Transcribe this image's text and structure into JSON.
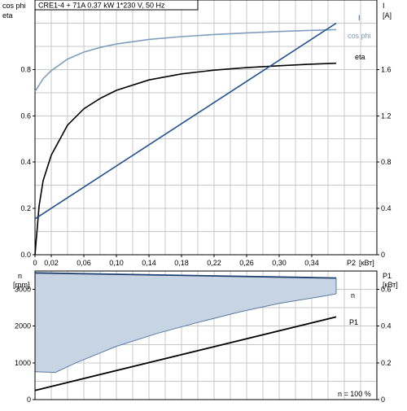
{
  "header": "CRE1-4 + 71A   0.37 kW   1*230 V, 50 Hz",
  "footnote": "n = 100 %",
  "chart_data": [
    {
      "type": "line",
      "panel": "top",
      "title": "CRE1-4 + 71A   0.37 kW   1*230 V, 50 Hz",
      "xlabel": "P2 [кВт]",
      "xlim": [
        0,
        0.42
      ],
      "x_ticks": [
        "0",
        "0,02",
        "0,06",
        "0,10",
        "0,14",
        "0,18",
        "0,22",
        "0,26",
        "0,30",
        "0,34"
      ],
      "x_tick_values": [
        0,
        0.02,
        0.06,
        0.1,
        0.14,
        0.18,
        0.22,
        0.26,
        0.3,
        0.34
      ],
      "x_label_pieces": [
        "P2",
        "[кВт]"
      ],
      "y_left": {
        "label_lines": [
          "cos phi",
          "eta"
        ],
        "lim": [
          0,
          1.1
        ],
        "ticks": [
          "0.0",
          "0.2",
          "0.4",
          "0.6",
          "0.8"
        ],
        "tick_values": [
          0,
          0.2,
          0.4,
          0.6,
          0.8
        ]
      },
      "y_right": {
        "label_lines": [
          "I",
          "[A]"
        ],
        "lim": [
          0,
          2.2
        ],
        "ticks": [
          "0",
          "0.4",
          "0.8",
          "1.2",
          "1.6"
        ],
        "tick_values": [
          0,
          0.4,
          0.8,
          1.2,
          1.6
        ]
      },
      "grid": true,
      "series": [
        {
          "name": "cos phi",
          "axis": "left",
          "color": "#7f9fbf",
          "x": [
            0,
            0.01,
            0.02,
            0.04,
            0.06,
            0.08,
            0.1,
            0.14,
            0.18,
            0.22,
            0.26,
            0.3,
            0.34,
            0.37
          ],
          "y": [
            0.705,
            0.76,
            0.795,
            0.845,
            0.875,
            0.895,
            0.91,
            0.93,
            0.942,
            0.951,
            0.958,
            0.964,
            0.969,
            0.972
          ]
        },
        {
          "name": "eta",
          "axis": "left",
          "color": "#000000",
          "x": [
            0,
            0.005,
            0.01,
            0.02,
            0.04,
            0.06,
            0.08,
            0.1,
            0.14,
            0.18,
            0.22,
            0.26,
            0.3,
            0.34,
            0.37
          ],
          "y": [
            0.0,
            0.21,
            0.32,
            0.43,
            0.56,
            0.63,
            0.675,
            0.71,
            0.755,
            0.781,
            0.797,
            0.808,
            0.816,
            0.823,
            0.827
          ]
        },
        {
          "name": "I",
          "axis": "right",
          "color": "#1f4f8f",
          "x": [
            0,
            0.37
          ],
          "y": [
            0.31,
            2.0
          ]
        }
      ]
    },
    {
      "type": "line",
      "panel": "bottom",
      "xlim": [
        0,
        0.42
      ],
      "y_left": {
        "label_lines": [
          "n",
          "[rpm]"
        ],
        "lim": [
          0,
          3500
        ],
        "ticks": [
          "0",
          "1000",
          "2000",
          "3000"
        ],
        "tick_values": [
          0,
          1000,
          2000,
          3000
        ]
      },
      "y_right": {
        "label_lines": [
          "P1",
          "[кВт]"
        ],
        "lim": [
          0,
          0.7
        ],
        "ticks": [
          "0",
          "0.2",
          "0.4",
          "0.6"
        ],
        "tick_values": [
          0,
          0.2,
          0.4,
          0.6
        ]
      },
      "grid": true,
      "range_band": {
        "color": "#c6d4e3",
        "upper": {
          "x": [
            0,
            0.37
          ],
          "y": [
            3450,
            3310
          ]
        },
        "lower": {
          "x": [
            0,
            0.025,
            0.05,
            0.1,
            0.15,
            0.2,
            0.25,
            0.3,
            0.35,
            0.37
          ],
          "y": [
            760,
            740,
            1000,
            1450,
            1800,
            2100,
            2380,
            2620,
            2800,
            2880
          ]
        }
      },
      "series": [
        {
          "name": "n",
          "axis": "left",
          "color": "#1f3f6f",
          "x": [
            0,
            0.37
          ],
          "y": [
            3450,
            3310
          ]
        },
        {
          "name": "P1",
          "axis": "right",
          "color": "#000000",
          "x": [
            0,
            0.37
          ],
          "y": [
            0.05,
            0.45
          ]
        }
      ]
    }
  ]
}
